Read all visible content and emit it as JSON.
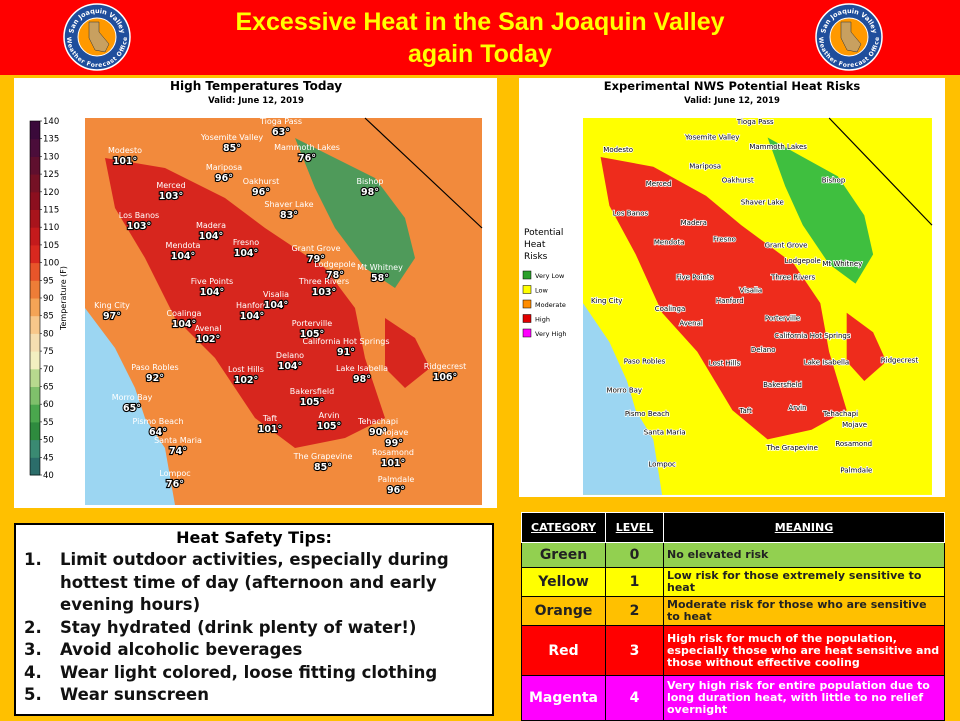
{
  "header": {
    "title_lines": [
      "Excessive Heat in the San Joaquin Valley",
      "again Today"
    ],
    "logo": {
      "top": "San Joaquin Valley",
      "bottom": "Weather Forecast Office"
    }
  },
  "left_map": {
    "title": "High Temperatures Today",
    "valid": "Valid: June 12, 2019",
    "colorbar_label": "Temperature (F)",
    "colorbar_ticks": [
      40,
      45,
      50,
      55,
      60,
      65,
      70,
      75,
      80,
      85,
      90,
      95,
      100,
      105,
      110,
      115,
      120,
      125,
      130,
      135,
      140
    ],
    "cities": [
      {
        "name": "Tioga Pass",
        "temp": "63°"
      },
      {
        "name": "Yosemite Valley",
        "temp": "85°"
      },
      {
        "name": "Mammoth Lakes",
        "temp": "76°"
      },
      {
        "name": "Modesto",
        "temp": "101°"
      },
      {
        "name": "Mariposa",
        "temp": "96°"
      },
      {
        "name": "Oakhurst",
        "temp": "96°"
      },
      {
        "name": "Bishop",
        "temp": "98°"
      },
      {
        "name": "Merced",
        "temp": "103°"
      },
      {
        "name": "Shaver Lake",
        "temp": "83°"
      },
      {
        "name": "Los Banos",
        "temp": "103°"
      },
      {
        "name": "Madera",
        "temp": "104°"
      },
      {
        "name": "Fresno",
        "temp": "104°"
      },
      {
        "name": "Mendota",
        "temp": "104°"
      },
      {
        "name": "Grant Grove",
        "temp": "79°"
      },
      {
        "name": "Lodgepole",
        "temp": "78°"
      },
      {
        "name": "Mt Whitney",
        "temp": "58°"
      },
      {
        "name": "Five Points",
        "temp": "104°"
      },
      {
        "name": "Three Rivers",
        "temp": "103°"
      },
      {
        "name": "Hanford",
        "temp": "104°"
      },
      {
        "name": "Visalia",
        "temp": "104°"
      },
      {
        "name": "King City",
        "temp": "97°"
      },
      {
        "name": "Coalinga",
        "temp": "104°"
      },
      {
        "name": "Avenal",
        "temp": "102°"
      },
      {
        "name": "Porterville",
        "temp": "105°"
      },
      {
        "name": "California Hot Springs",
        "temp": "91°"
      },
      {
        "name": "Delano",
        "temp": "104°"
      },
      {
        "name": "Paso Robles",
        "temp": "92°"
      },
      {
        "name": "Lost Hills",
        "temp": "102°"
      },
      {
        "name": "Lake Isabella",
        "temp": "98°"
      },
      {
        "name": "Ridgecrest",
        "temp": "106°"
      },
      {
        "name": "Morro Bay",
        "temp": "65°"
      },
      {
        "name": "Bakersfield",
        "temp": "105°"
      },
      {
        "name": "Pismo Beach",
        "temp": "64°"
      },
      {
        "name": "Taft",
        "temp": "101°"
      },
      {
        "name": "Arvin",
        "temp": "105°"
      },
      {
        "name": "Tehachapi",
        "temp": "90°"
      },
      {
        "name": "Mojave",
        "temp": "99°"
      },
      {
        "name": "Santa Maria",
        "temp": "74°"
      },
      {
        "name": "The Grapevine",
        "temp": "85°"
      },
      {
        "name": "Rosamond",
        "temp": "101°"
      },
      {
        "name": "Lompoc",
        "temp": "76°"
      },
      {
        "name": "Palmdale",
        "temp": "96°"
      }
    ]
  },
  "right_map": {
    "title": "Experimental NWS Potential Heat Risks",
    "valid": "Valid: June 12, 2019",
    "legend_title": [
      "Potential",
      "Heat",
      "Risks"
    ],
    "legend": [
      {
        "label": "Very Low",
        "color": "#2ca02c"
      },
      {
        "label": "Low",
        "color": "#ffff00"
      },
      {
        "label": "Moderate",
        "color": "#ff8c00"
      },
      {
        "label": "High",
        "color": "#e00000"
      },
      {
        "label": "Very High",
        "color": "#ff00ff"
      }
    ]
  },
  "tips": {
    "title": "Heat Safety Tips:",
    "items": [
      {
        "num": "1.",
        "text": "Limit outdoor activities, especially during hottest time of day (afternoon and early evening hours)"
      },
      {
        "num": "2.",
        "text": "Stay hydrated (drink plenty of water!)"
      },
      {
        "num": "3.",
        "text": "Avoid alcoholic beverages"
      },
      {
        "num": "4.",
        "text": "Wear light colored, loose fitting clothing"
      },
      {
        "num": "5.",
        "text": "Wear sunscreen"
      }
    ]
  },
  "table": {
    "header": [
      "CATEGORY",
      "LEVEL",
      "MEANING"
    ],
    "rows": [
      {
        "category": "Green",
        "level": "0",
        "meaning": "No elevated risk",
        "color": "#92d050"
      },
      {
        "category": "Yellow",
        "level": "1",
        "meaning": "Low risk for those extremely sensitive to heat",
        "color": "#ffff00"
      },
      {
        "category": "Orange",
        "level": "2",
        "meaning": "Moderate risk for those who are sensitive to heat",
        "color": "#ffc000"
      },
      {
        "category": "Red",
        "level": "3",
        "meaning": "High risk for much of the population, especially those who are heat sensitive and those without effective cooling",
        "color": "#ff0000"
      },
      {
        "category": "Magenta",
        "level": "4",
        "meaning": "Very high risk for entire population due to long duration heat, with little to no relief overnight",
        "color": "#ff00ff"
      }
    ]
  }
}
